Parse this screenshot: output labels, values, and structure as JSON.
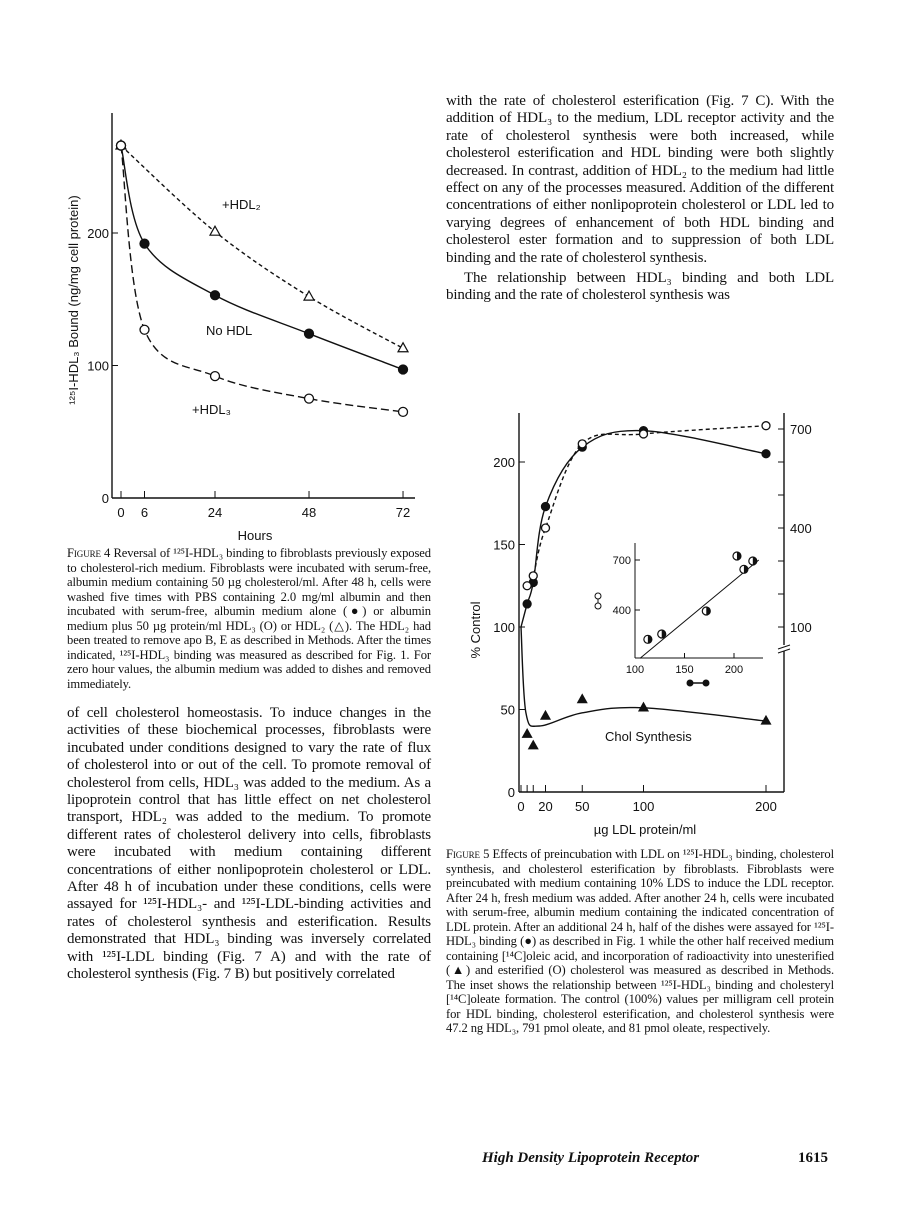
{
  "right_top": {
    "p1": "with the rate of cholesterol esterification (Fig. 7 C). With the addition of HDL₃ to the medium, LDL receptor activity and the rate of cholesterol synthesis were both increased, while cholesterol esterification and HDL binding were both slightly decreased. In contrast, addition of HDL₂ to the medium had little effect on any of the processes measured. Addition of the different concentrations of either nonlipoprotein cholesterol or LDL led to varying degrees of enhancement of both HDL binding and cholesterol ester formation and to suppression of both LDL binding and the rate of cholesterol synthesis.",
    "p2": "The relationship between HDL₃ binding and both LDL binding and the rate of cholesterol synthesis was"
  },
  "left_body": {
    "p1": "of cell cholesterol homeostasis. To induce changes in the activities of these biochemical processes, fibroblasts were incubated under conditions designed to vary the rate of flux of cholesterol into or out of the cell. To promote removal of cholesterol from cells, HDL₃ was added to the medium. As a lipoprotein control that has little effect on net cholesterol transport, HDL₂ was added to the medium. To promote different rates of cholesterol delivery into cells, fibroblasts were incubated with medium containing different concentrations of either nonlipoprotein cholesterol or LDL. After 48 h of incubation under these conditions, cells were assayed for ¹²⁵I-HDL₃- and ¹²⁵I-LDL-binding activities and rates of cholesterol synthesis and esterification. Results demonstrated that HDL₃ binding was inversely correlated with ¹²⁵I-LDL binding (Fig. 7 A) and with the rate of cholesterol synthesis (Fig. 7 B) but positively correlated"
  },
  "fig4_caption": {
    "label": "Figure 4",
    "text": "Reversal of ¹²⁵I-HDL₃ binding to fibroblasts previously exposed to cholesterol-rich medium. Fibroblasts were incubated with serum-free, albumin medium containing 50 µg cholesterol/ml. After 48 h, cells were washed five times with PBS containing 2.0 mg/ml albumin and then incubated with serum-free, albumin medium alone (●) or albumin medium plus 50 µg protein/ml HDL₃ (O) or HDL₂ (△). The HDL₂ had been treated to remove apo B, E as described in Methods. After the times indicated, ¹²⁵I-HDL₃ binding was measured as described for Fig. 1. For zero hour values, the albumin medium was added to dishes and removed immediately."
  },
  "fig5_caption": {
    "label": "Figure 5",
    "text": "Effects of preincubation with LDL on ¹²⁵I-HDL₃ binding, cholesterol synthesis, and cholesterol esterification by fibroblasts. Fibroblasts were preincubated with medium containing 10% LDS to induce the LDL receptor. After 24 h, fresh medium was added. After another 24 h, cells were incubated with serum-free, albumin medium containing the indicated concentration of LDL protein. After an additional 24 h, half of the dishes were assayed for ¹²⁵I-HDL₃ binding (●) as described in Fig. 1 while the other half received medium containing [¹⁴C]oleic acid, and incorporation of radioactivity into unesterified (▲) and esterified (O) cholesterol was measured as described in Methods. The inset shows the relationship between ¹²⁵I-HDL₃ binding and cholesteryl [¹⁴C]oleate formation. The control (100%) values per milligram cell protein for HDL binding, cholesterol esterification, and cholesterol synthesis were 47.2 ng HDL₃, 791 pmol oleate, and 81 pmol oleate, respectively."
  },
  "footer": {
    "running_title": "High Density Lipoprotein Receptor",
    "page_number": "1615"
  },
  "chart_data": [
    {
      "type": "line",
      "title": "Figure 4",
      "xlabel": "Hours",
      "ylabel": "¹²⁵I-HDL₃ Bound (ng/mg cell protein)",
      "xlim": [
        0,
        72
      ],
      "ylim": [
        0,
        280
      ],
      "xticks": [
        "0",
        "6",
        "24",
        "48",
        "72"
      ],
      "xtick_values": [
        0,
        6,
        24,
        48,
        72
      ],
      "yticks": [
        "0",
        "100",
        "200"
      ],
      "ytick_values": [
        0,
        100,
        200
      ],
      "series": [
        {
          "name": "+HDL₂",
          "marker": "triangle-open",
          "style": "dashed",
          "x": [
            0,
            24,
            48,
            72
          ],
          "y": [
            266,
            201,
            152,
            113
          ]
        },
        {
          "name": "No HDL",
          "marker": "circle-filled",
          "style": "solid",
          "x": [
            0,
            6,
            24,
            48,
            72
          ],
          "y": [
            266,
            192,
            153,
            124,
            97
          ]
        },
        {
          "name": "+HDL₃",
          "marker": "circle-open",
          "style": "longdash",
          "x": [
            0,
            6,
            24,
            48,
            72
          ],
          "y": [
            266,
            127,
            92,
            75,
            65
          ]
        }
      ]
    },
    {
      "type": "line",
      "title": "Figure 5",
      "xlabel": "µg LDL protein/ml",
      "ylabel": "% Control",
      "xlim": [
        0,
        200
      ],
      "ylim": [
        0,
        225
      ],
      "xticks": [
        "0",
        "20",
        "50",
        "100",
        "200"
      ],
      "xtick_values": [
        0,
        20,
        50,
        100,
        200
      ],
      "minor_xticks": [
        5,
        10
      ],
      "yticks": [
        "0",
        "50",
        "100",
        "150",
        "200"
      ],
      "ytick_values": [
        0,
        50,
        100,
        150,
        200
      ],
      "right_yticks": [
        "100",
        "400",
        "700"
      ],
      "right_ytick_values": [
        100,
        400,
        700
      ],
      "annotation": "Chol Synthesis",
      "series": [
        {
          "name": "HDL binding",
          "marker": "circle-filled",
          "style": "solid",
          "x": [
            0,
            5,
            10,
            20,
            50,
            100,
            200
          ],
          "y": [
            100,
            114,
            127,
            173,
            209,
            219,
            205
          ]
        },
        {
          "name": "Cholesterol esterification",
          "marker": "circle-open",
          "style": "dashed",
          "x": [
            5,
            10,
            20,
            50,
            100,
            200
          ],
          "y": [
            125,
            131,
            160,
            211,
            217,
            222
          ]
        },
        {
          "name": "Chol Synthesis",
          "marker": "triangle-filled",
          "style": "solid",
          "x": [
            5,
            10,
            20,
            50,
            100,
            200
          ],
          "y": [
            35,
            28,
            46,
            56,
            51,
            43
          ]
        }
      ],
      "inset": {
        "type": "scatter",
        "xlim": [
          100,
          230
        ],
        "ylim": [
          110,
          760
        ],
        "xticks": [
          "100",
          "150",
          "200"
        ],
        "xtick_values": [
          100,
          150,
          200
        ],
        "yticks": [
          "400",
          "700"
        ],
        "ytick_values": [
          400,
          700
        ],
        "x": [
          113,
          127,
          172,
          203,
          210,
          219
        ],
        "y": [
          224,
          256,
          394,
          724,
          644,
          694
        ],
        "fit": [
          [
            105,
            110
          ],
          [
            225,
            700
          ]
        ]
      }
    }
  ]
}
